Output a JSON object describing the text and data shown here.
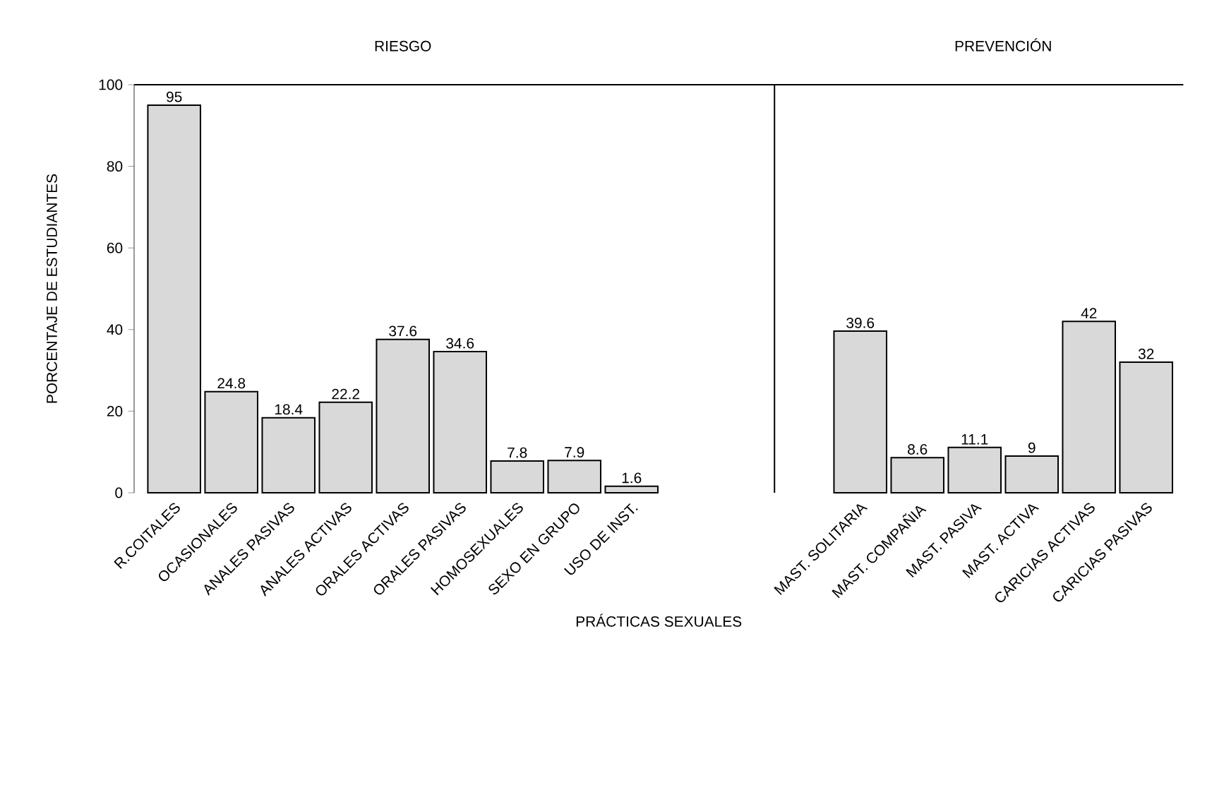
{
  "chart_data": {
    "type": "bar",
    "xlabel": "PRÁCTICAS SEXUALES",
    "ylabel": "PORCENTAJE DE ESTUDIANTES",
    "categories": [
      "R.COITALES",
      "OCASIONALES",
      "ANALES PASIVAS",
      "ANALES ACTIVAS",
      "ORALES ACTIVAS",
      "ORALES PASIVAS",
      "HOMOSEXUALES",
      "SEXO EN GRUPO",
      "USO DE INST.",
      null,
      null,
      null,
      "MAST. SOLITARIA",
      "MAST. COMPAÑIA",
      "MAST. PASIVA",
      "MAST. ACTIVA",
      "CARICIAS ACTIVAS",
      "CARICIAS PASIVAS"
    ],
    "values": [
      95,
      24.8,
      18.4,
      22.2,
      37.6,
      34.6,
      7.8,
      7.9,
      1.6,
      null,
      null,
      null,
      39.6,
      8.6,
      11.1,
      9,
      42,
      32
    ],
    "color": "#d9d9d9",
    "data_labels": true,
    "ylim": [
      0,
      100
    ],
    "yticks": [
      0,
      20,
      40,
      60,
      80,
      100
    ],
    "grid": false,
    "annotations": [
      "RIESGO",
      "PREVENCIÓN"
    ]
  }
}
